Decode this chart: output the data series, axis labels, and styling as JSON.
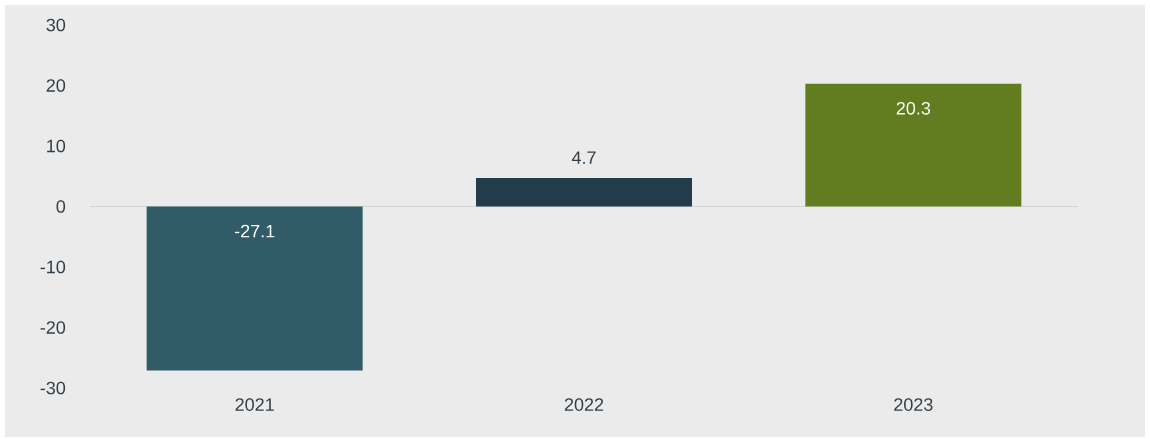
{
  "chart_data": {
    "type": "bar",
    "categories": [
      "2021",
      "2022",
      "2023"
    ],
    "values": [
      -27.1,
      4.7,
      20.3
    ],
    "colors": [
      "#325b68",
      "#223c4b",
      "#627d1f"
    ],
    "value_labels": [
      "-27.1",
      "4.7",
      "20.3"
    ],
    "ylim": [
      -30,
      30
    ],
    "yticks": [
      -30,
      -20,
      -10,
      0,
      10,
      20,
      30
    ],
    "ref_lines": [
      {
        "axis": "y",
        "value": 0,
        "color": "#d4d4d4"
      }
    ]
  }
}
